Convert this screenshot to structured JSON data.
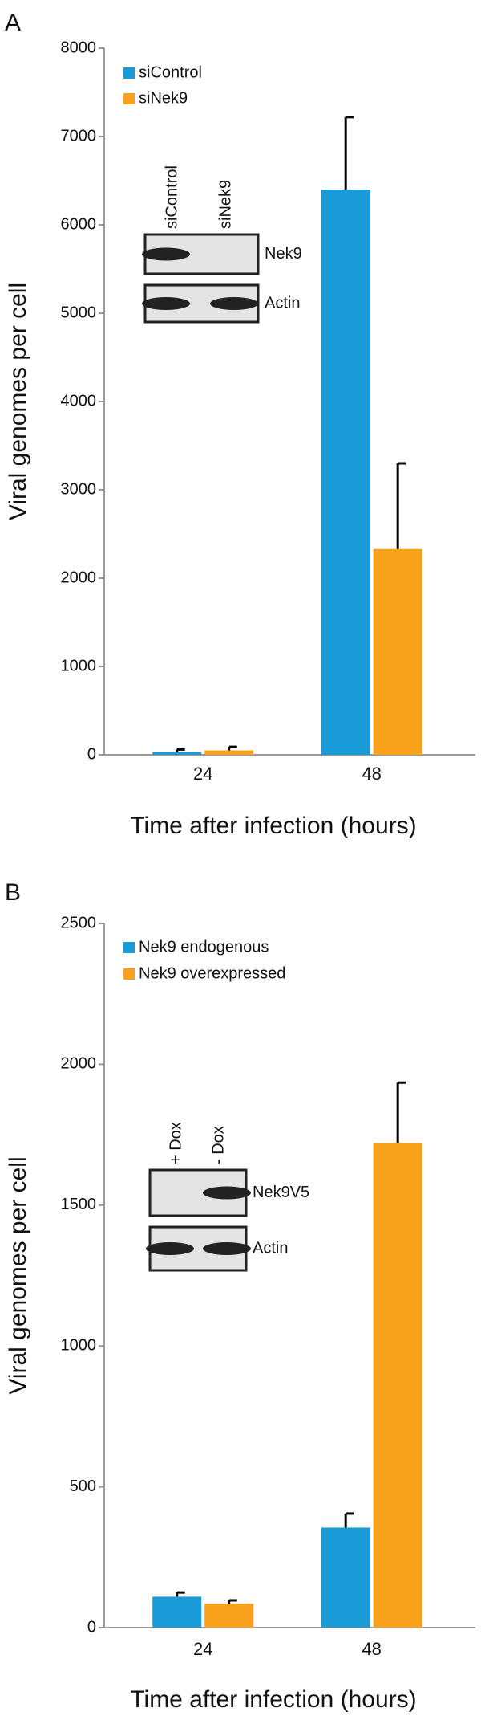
{
  "chart_data": [
    {
      "type": "bar",
      "panel": "A",
      "y_label": "Viral genomes per cell",
      "x_label": "Time after infection (hours)",
      "categories": [
        "24",
        "48"
      ],
      "series": [
        {
          "name": "siControl",
          "color": "#1a9ad6",
          "values": [
            30,
            6400
          ],
          "errors": [
            30,
            820
          ]
        },
        {
          "name": "siNek9",
          "color": "#f9a11b",
          "values": [
            50,
            2330
          ],
          "errors": [
            40,
            970
          ]
        }
      ],
      "ylim": [
        0,
        8000
      ],
      "yticks": [
        0,
        1000,
        2000,
        3000,
        4000,
        5000,
        6000,
        7000,
        8000
      ],
      "inset": {
        "lanes": [
          "siControl",
          "siNek9"
        ],
        "bands": [
          "Nek9",
          "Actin"
        ]
      }
    },
    {
      "type": "bar",
      "panel": "B",
      "y_label": "Viral genomes per cell",
      "x_label": "Time after infection (hours)",
      "categories": [
        "24",
        "48"
      ],
      "series": [
        {
          "name": "Nek9 endogenous",
          "color": "#1a9ad6",
          "values": [
            110,
            355
          ],
          "errors": [
            15,
            50
          ]
        },
        {
          "name": "Nek9 overexpressed",
          "color": "#f9a11b",
          "values": [
            85,
            1720
          ],
          "errors": [
            12,
            215
          ]
        }
      ],
      "ylim": [
        0,
        2500
      ],
      "yticks": [
        0,
        500,
        1000,
        1500,
        2000,
        2500
      ],
      "inset": {
        "lanes": [
          "+ Dox",
          "- Dox"
        ],
        "bands": [
          "Nek9V5",
          "Actin"
        ]
      }
    }
  ]
}
